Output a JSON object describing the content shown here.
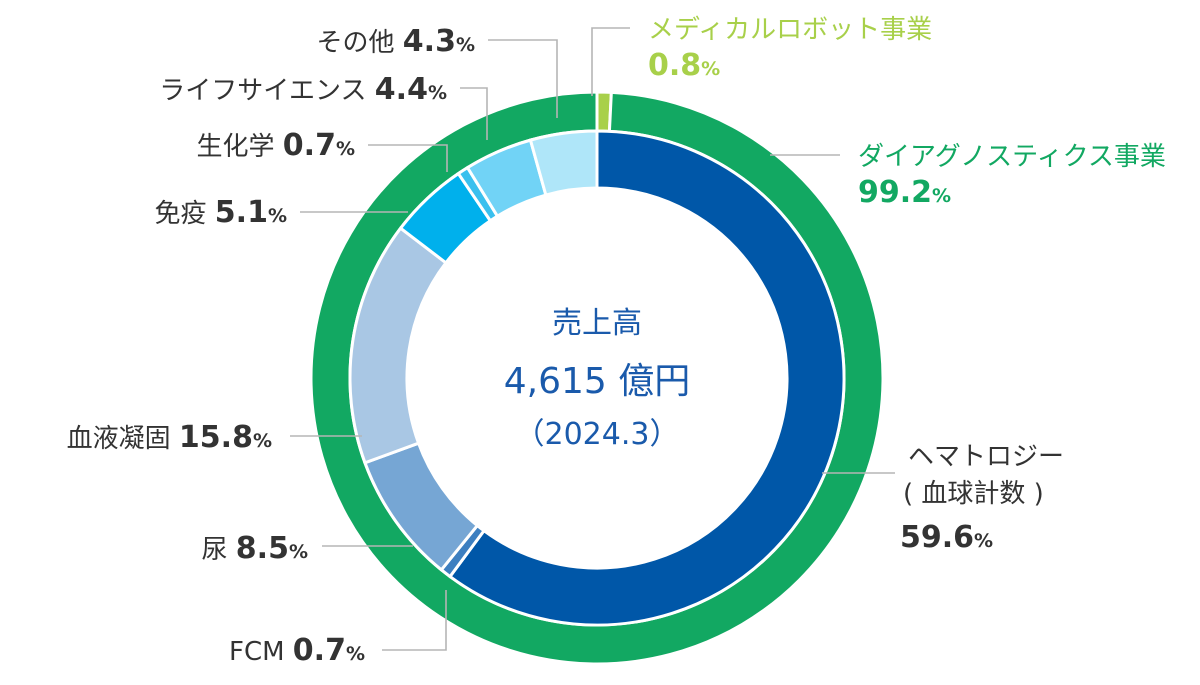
{
  "chart_data": {
    "type": "pie",
    "center": {
      "title": "売上高",
      "amount": "4,615 億円",
      "period": "（2024.3）"
    },
    "outer_ring": [
      {
        "name": "メディカルロボット事業",
        "value": 0.8,
        "value_label": "0.8",
        "color": "#a8d04a"
      },
      {
        "name": "ダイアグノスティクス事業",
        "value": 99.2,
        "value_label": "99.2",
        "color": "#12a862"
      }
    ],
    "inner_ring": [
      {
        "name": "ヘマトロジー",
        "name2": "( 血球計数 )",
        "value": 59.6,
        "value_label": "59.6",
        "color": "#0057a8"
      },
      {
        "name": "FCM",
        "value": 0.7,
        "value_label": "0.7",
        "color": "#3d7fc0"
      },
      {
        "name": "尿",
        "value": 8.5,
        "value_label": "8.5",
        "color": "#76a6d4"
      },
      {
        "name": "血液凝固",
        "value": 15.8,
        "value_label": "15.8",
        "color": "#a9c7e4"
      },
      {
        "name": "免疫",
        "value": 5.1,
        "value_label": "5.1",
        "color": "#00b0ec"
      },
      {
        "name": "生化学",
        "value": 0.7,
        "value_label": "0.7",
        "color": "#3ac0ee"
      },
      {
        "name": "ライフサイエンス",
        "value": 4.4,
        "value_label": "4.4",
        "color": "#71d3f6"
      },
      {
        "name": "その他",
        "value": 4.3,
        "value_label": "4.3",
        "color": "#afe6f9"
      }
    ],
    "unit": "%"
  }
}
